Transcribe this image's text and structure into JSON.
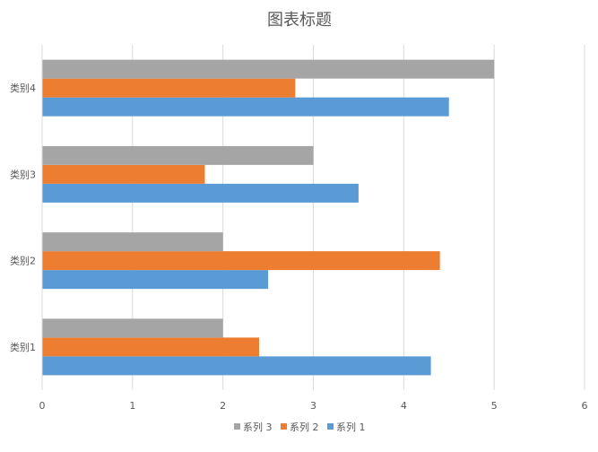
{
  "chart_data": {
    "type": "bar",
    "orientation": "horizontal",
    "title": "图表标题",
    "xlabel": "",
    "ylabel": "",
    "categories": [
      "类别1",
      "类别2",
      "类别3",
      "类别4"
    ],
    "series": [
      {
        "name": "系列 1",
        "color": "#5B9BD5",
        "values": [
          4.3,
          2.5,
          3.5,
          4.5
        ]
      },
      {
        "name": "系列 2",
        "color": "#ED7D31",
        "values": [
          2.4,
          4.4,
          1.8,
          2.8
        ]
      },
      {
        "name": "系列 3",
        "color": "#A5A5A5",
        "values": [
          2.0,
          2.0,
          3.0,
          5.0
        ]
      }
    ],
    "xlim": [
      0,
      6
    ],
    "xticks": [
      "0",
      "1",
      "2",
      "3",
      "4",
      "5",
      "6"
    ],
    "grid": true,
    "legend_position": "bottom",
    "legend_order": [
      "系列 3",
      "系列 2",
      "系列 1"
    ]
  }
}
